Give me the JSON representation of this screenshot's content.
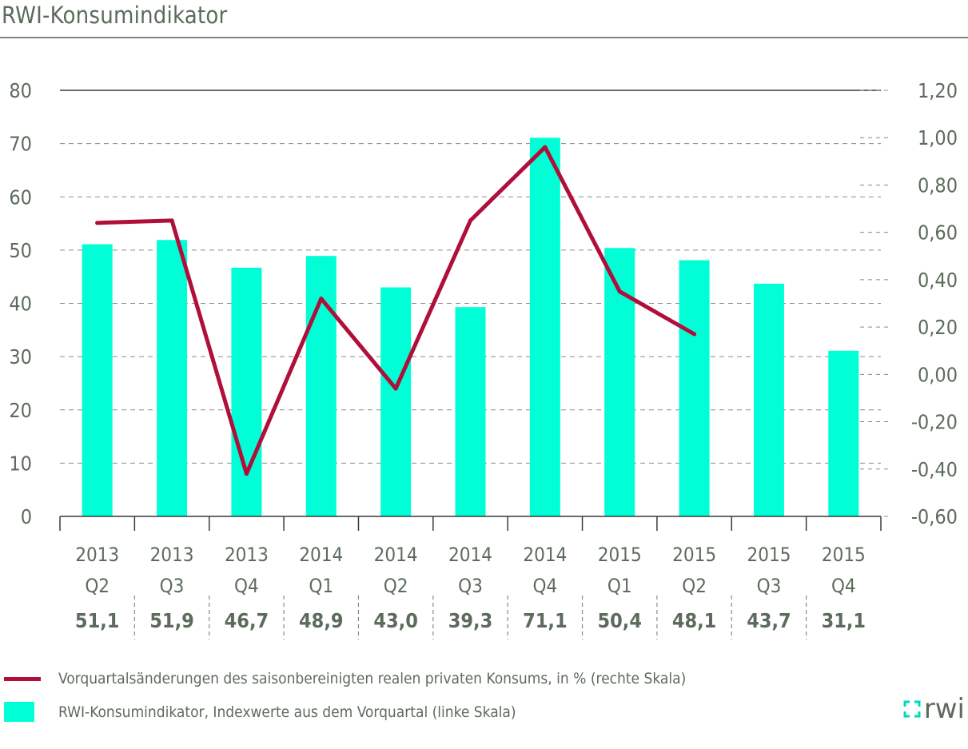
{
  "page": {
    "title": "RWI-Konsumindikator"
  },
  "colors": {
    "bar": "#00ffd6",
    "line": "#b00f3a",
    "text": "#5d6b5c",
    "grid": "#7a8478"
  },
  "chart_data": {
    "type": "bar",
    "title": "RWI-Konsumindikator",
    "categories": [
      {
        "year": "2013",
        "quarter": "Q2"
      },
      {
        "year": "2013",
        "quarter": "Q3"
      },
      {
        "year": "2013",
        "quarter": "Q4"
      },
      {
        "year": "2014",
        "quarter": "Q1"
      },
      {
        "year": "2014",
        "quarter": "Q2"
      },
      {
        "year": "2014",
        "quarter": "Q3"
      },
      {
        "year": "2014",
        "quarter": "Q4"
      },
      {
        "year": "2015",
        "quarter": "Q1"
      },
      {
        "year": "2015",
        "quarter": "Q2"
      },
      {
        "year": "2015",
        "quarter": "Q3"
      },
      {
        "year": "2015",
        "quarter": "Q4"
      }
    ],
    "value_labels": [
      "51,1",
      "51,9",
      "46,7",
      "48,9",
      "43,0",
      "39,3",
      "71,1",
      "50,4",
      "48,1",
      "43,7",
      "31,1"
    ],
    "left_axis": {
      "min": 0,
      "max": 80,
      "ticks": [
        "0",
        "10",
        "20",
        "30",
        "40",
        "50",
        "60",
        "70",
        "80"
      ]
    },
    "right_axis": {
      "min": -0.6,
      "max": 1.2,
      "ticks": [
        "-0,60",
        "-0,40",
        "-0,20",
        "0,00",
        "0,20",
        "0,40",
        "0,60",
        "0,80",
        "1,00",
        "1,20"
      ]
    },
    "series": [
      {
        "name": "RWI-Konsumindikator, Indexwerte aus dem Vorquartal (linke Skala)",
        "type": "bar",
        "axis": "left",
        "values": [
          51.1,
          51.9,
          46.7,
          48.9,
          43.0,
          39.3,
          71.1,
          50.4,
          48.1,
          43.7,
          31.1
        ]
      },
      {
        "name": "Vorquartalsänderungen des saisonbereinigten realen privaten Konsums, in % (rechte Skala)",
        "type": "line",
        "axis": "right",
        "values": [
          0.64,
          0.65,
          -0.42,
          0.32,
          -0.06,
          0.65,
          0.96,
          0.35,
          0.17,
          null,
          null
        ]
      }
    ],
    "grid": true,
    "legend": "bottom-left"
  },
  "legend": {
    "line_label": "Vorquartalsänderungen des saisonbereinigten realen privaten Konsums, in % (rechte Skala)",
    "bar_label": "RWI-Konsumindikator, Indexwerte aus dem Vorquartal (linke Skala)"
  },
  "logo": {
    "text": "rwi"
  }
}
